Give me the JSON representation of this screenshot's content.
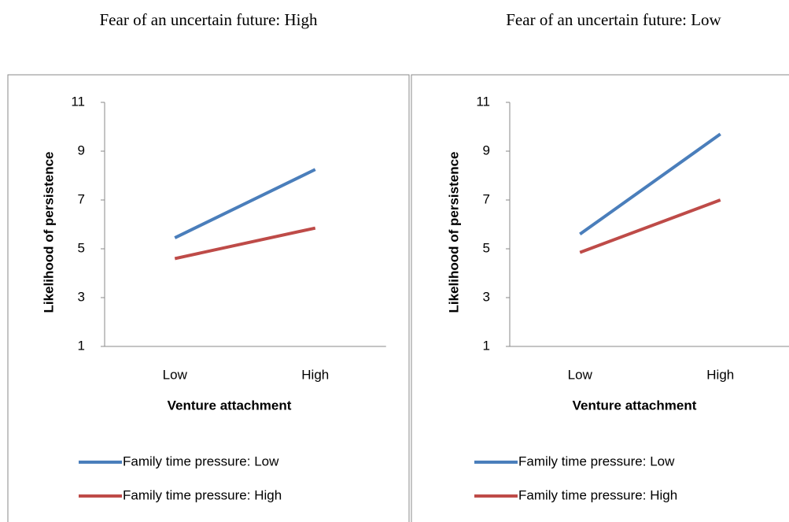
{
  "chart_data": [
    {
      "type": "line",
      "title": "Fear of an uncertain future: High",
      "x_label": "Venture attachment",
      "y_label": "Likelihood of persistence",
      "categories": [
        "Low",
        "High"
      ],
      "series": [
        {
          "name": "Family time pressure: Low",
          "color": "#4a7ebb",
          "values": [
            5.45,
            8.25
          ]
        },
        {
          "name": "Family time pressure: High",
          "color": "#be4b48",
          "values": [
            4.6,
            5.85
          ]
        }
      ],
      "ylim": [
        1,
        11
      ],
      "yticks": [
        1,
        3,
        5,
        7,
        9,
        11
      ],
      "grid": false
    },
    {
      "type": "line",
      "title": "Fear of an uncertain future: Low",
      "x_label": "Venture attachment",
      "y_label": "Likelihood of persistence",
      "categories": [
        "Low",
        "High"
      ],
      "series": [
        {
          "name": "Family time pressure: Low",
          "color": "#4a7ebb",
          "values": [
            5.6,
            9.7
          ]
        },
        {
          "name": "Family time pressure: High",
          "color": "#be4b48",
          "values": [
            4.85,
            7.0
          ]
        }
      ],
      "ylim": [
        1,
        11
      ],
      "yticks": [
        1,
        3,
        5,
        7,
        9,
        11
      ],
      "grid": false
    }
  ]
}
